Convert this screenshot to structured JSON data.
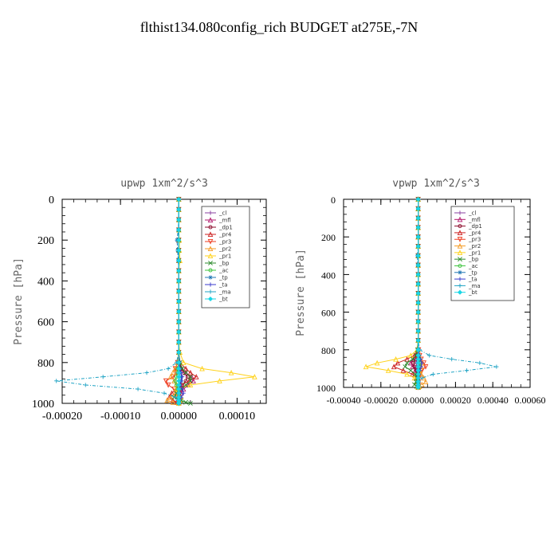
{
  "figure": {
    "title": "flthist134.080config_rich  BUDGET at275E,-7N"
  },
  "legend_labels": [
    "_cl",
    "_mfl",
    "_dp1",
    "_pr4",
    "_pr3",
    "_pr2",
    "_pr1",
    "_bp",
    "_ac",
    "_tp",
    "_ta",
    "_ma",
    "_bt"
  ],
  "colors": {
    "_cl": "#8a3fa0",
    "_mfl": "#b2186b",
    "_dp1": "#8b0a2a",
    "_pr4": "#cc1f1f",
    "_pr3": "#ee3b1f",
    "_pr2": "#f59a23",
    "_pr1": "#ffd21a",
    "_bp": "#2e8b2e",
    "_ac": "#3cc43c",
    "_tp": "#1f77b4",
    "_ta": "#3a3acc",
    "_ma": "#1fa3c4",
    "_bt": "#18d6e6"
  },
  "chart_data": [
    {
      "type": "line",
      "title": "upwp  1xm^2/s^3",
      "xlabel": "",
      "ylabel": "Pressure [hPa]",
      "xlim": [
        -0.0002,
        0.00015
      ],
      "ylim": [
        1000,
        0
      ],
      "x_ticks": [
        -0.0002,
        -0.0001,
        0.0,
        0.0001
      ],
      "x_tick_labels": [
        "-0.00020",
        "-0.00010",
        "0.00000",
        "0.00010"
      ],
      "y_ticks": [
        0,
        200,
        400,
        600,
        800,
        1000
      ],
      "y_tick_labels": [
        "0",
        "200",
        "400",
        "600",
        "800",
        "1000"
      ],
      "legend_position": "upper-right",
      "pressure_levels": [
        0,
        50,
        100,
        150,
        200,
        250,
        300,
        350,
        400,
        450,
        500,
        550,
        600,
        650,
        700,
        750,
        800,
        830,
        850,
        870,
        890,
        910,
        930,
        950,
        970,
        985,
        995,
        1000
      ],
      "series": [
        {
          "name": "_cl",
          "x": [
            0,
            0,
            0,
            0,
            0,
            0,
            0,
            0,
            0,
            0,
            0,
            0,
            0,
            0,
            0,
            0,
            0,
            2e-06,
            4e-06,
            5e-06,
            4e-06,
            2e-06,
            1e-06,
            0,
            -1e-06,
            0,
            0,
            0
          ]
        },
        {
          "name": "_mfl",
          "x": [
            0,
            0,
            0,
            0,
            0,
            0,
            0,
            0,
            0,
            0,
            0,
            0,
            0,
            0,
            0,
            0,
            1e-06,
            5e-06,
            1.2e-05,
            2.2e-05,
            2.5e-05,
            1.6e-05,
            8e-06,
            4e-06,
            2e-06,
            1e-06,
            0,
            0
          ]
        },
        {
          "name": "_dp1",
          "x": [
            0,
            0,
            0,
            0,
            0,
            0,
            0,
            0,
            0,
            0,
            0,
            0,
            0,
            0,
            0,
            0,
            1e-06,
            4e-06,
            9e-06,
            1.5e-05,
            1.2e-05,
            6e-06,
            3e-06,
            1e-06,
            0,
            0,
            0,
            0
          ]
        },
        {
          "name": "_pr4",
          "x": [
            0,
            0,
            0,
            0,
            0,
            0,
            0,
            0,
            0,
            0,
            0,
            0,
            0,
            0,
            0,
            0,
            2e-06,
            1.2e-05,
            2e-05,
            3e-05,
            1.8e-05,
            4e-06,
            -4e-06,
            -1.2e-05,
            -1.6e-05,
            -1e-05,
            -4e-06,
            0
          ]
        },
        {
          "name": "_pr3",
          "x": [
            0,
            0,
            0,
            0,
            0,
            0,
            0,
            0,
            0,
            0,
            0,
            0,
            0,
            0,
            0,
            0,
            -2e-06,
            -6e-06,
            -4e-06,
            -1e-05,
            -2.2e-05,
            -1.8e-05,
            -8e-06,
            -4e-06,
            -2e-06,
            0,
            0,
            0
          ]
        },
        {
          "name": "_pr2",
          "x": [
            0,
            0,
            0,
            0,
            0,
            0,
            0,
            0,
            0,
            0,
            0,
            0,
            0,
            0,
            0,
            0,
            -2e-06,
            -6e-06,
            -1e-05,
            -1.4e-05,
            -8e-06,
            -4e-06,
            -2e-06,
            -6e-06,
            -1.4e-05,
            -2e-05,
            -1e-05,
            0
          ]
        },
        {
          "name": "_pr1",
          "x": [
            0,
            0,
            0,
            0,
            1e-06,
            1e-06,
            2e-06,
            0,
            0,
            0,
            0,
            0,
            0,
            0,
            0,
            2e-06,
            8e-06,
            4e-05,
            9e-05,
            0.00013,
            7e-05,
            2e-05,
            -4e-06,
            -2e-06,
            4e-06,
            2e-06,
            0,
            0
          ]
        },
        {
          "name": "_bp",
          "x": [
            0,
            0,
            0,
            0,
            0,
            0,
            0,
            0,
            0,
            0,
            0,
            0,
            0,
            0,
            0,
            0,
            2e-06,
            6e-06,
            1.2e-05,
            2e-05,
            2e-05,
            1.2e-05,
            4e-06,
            -4e-06,
            -8e-06,
            4e-06,
            1.2e-05,
            2e-05
          ]
        },
        {
          "name": "_ac",
          "x": [
            0,
            0,
            0,
            0,
            0,
            0,
            0,
            0,
            0,
            0,
            0,
            0,
            0,
            0,
            0,
            0,
            0,
            -2e-06,
            -2e-06,
            -4e-06,
            -6e-06,
            -4e-06,
            -2e-06,
            0,
            0,
            0,
            0,
            0
          ]
        },
        {
          "name": "_tp",
          "x": [
            0,
            0,
            0,
            -1e-06,
            -3e-06,
            -2e-06,
            -1e-06,
            0,
            0,
            0,
            0,
            0,
            0,
            0,
            0,
            0,
            0,
            0,
            2e-06,
            4e-06,
            4e-06,
            2e-06,
            0,
            0,
            0,
            0,
            0,
            0
          ]
        },
        {
          "name": "_ta",
          "x": [
            0,
            0,
            0,
            0,
            0,
            0,
            0,
            0,
            0,
            0,
            0,
            0,
            0,
            0,
            0,
            0,
            1e-06,
            2e-06,
            4e-06,
            6e-06,
            4e-06,
            2e-06,
            6e-06,
            8e-06,
            4e-06,
            0,
            0,
            0
          ]
        },
        {
          "name": "_ma",
          "x": [
            0,
            0,
            0,
            0,
            0,
            0,
            0,
            0,
            0,
            0,
            0,
            0,
            0,
            0,
            0,
            0,
            -4e-06,
            -1.8e-05,
            -5.5e-05,
            -0.00013,
            -0.00021,
            -0.00016,
            -7e-05,
            -2.5e-05,
            -6e-06,
            -2e-06,
            0,
            0
          ]
        },
        {
          "name": "_bt",
          "x": [
            0,
            0,
            0,
            0,
            0,
            0,
            0,
            0,
            0,
            0,
            0,
            0,
            0,
            0,
            0,
            0,
            0,
            0,
            0,
            0,
            0,
            0,
            0,
            0,
            0,
            0,
            0,
            0
          ]
        }
      ]
    },
    {
      "type": "line",
      "title": "vpwp  1xm^2/s^3",
      "xlabel": "",
      "ylabel": "Pressure [hPa]",
      "xlim": [
        -0.0004,
        0.0006
      ],
      "ylim": [
        1000,
        0
      ],
      "x_ticks": [
        -0.0004,
        -0.0002,
        0.0,
        0.0002,
        0.0004,
        0.0006
      ],
      "x_tick_labels": [
        "-0.00040",
        "-0.00020",
        "0.00000",
        "0.00020",
        "0.00040",
        "0.00060"
      ],
      "y_ticks": [
        0,
        200,
        400,
        600,
        800,
        1000
      ],
      "y_tick_labels": [
        "0",
        "200",
        "400",
        "600",
        "800",
        "1000"
      ],
      "legend_position": "upper-right",
      "pressure_levels": [
        0,
        50,
        100,
        150,
        200,
        250,
        300,
        350,
        400,
        450,
        500,
        550,
        600,
        650,
        700,
        750,
        800,
        830,
        850,
        870,
        890,
        910,
        930,
        950,
        970,
        985,
        995,
        1000
      ],
      "series": [
        {
          "name": "_cl",
          "x": [
            0,
            0,
            0,
            0,
            0,
            0,
            0,
            0,
            0,
            0,
            0,
            0,
            0,
            0,
            0,
            0,
            0,
            -4e-06,
            -8e-06,
            -1e-05,
            -8e-06,
            -4e-06,
            -2e-06,
            0,
            0,
            0,
            0,
            0
          ]
        },
        {
          "name": "_mfl",
          "x": [
            0,
            0,
            0,
            0,
            0,
            0,
            0,
            0,
            0,
            0,
            0,
            0,
            0,
            0,
            0,
            0,
            -2e-06,
            -1e-05,
            -2.5e-05,
            -4e-05,
            -3e-05,
            -1.5e-05,
            -6e-06,
            -2e-06,
            0,
            0,
            0,
            0
          ]
        },
        {
          "name": "_dp1",
          "x": [
            0,
            0,
            0,
            0,
            0,
            0,
            0,
            0,
            0,
            0,
            0,
            0,
            0,
            0,
            0,
            0,
            -2e-06,
            -8e-06,
            -1.6e-05,
            -2.5e-05,
            -2e-05,
            -1e-05,
            -4e-06,
            -1e-06,
            0,
            0,
            0,
            0
          ]
        },
        {
          "name": "_pr4",
          "x": [
            0,
            0,
            0,
            0,
            0,
            0,
            0,
            0,
            0,
            0,
            0,
            0,
            0,
            0,
            0,
            0,
            -4e-06,
            -2e-05,
            -6e-05,
            -0.00011,
            -0.00013,
            -8e-05,
            -3e-05,
            -1e-05,
            -4e-06,
            0,
            0,
            0
          ]
        },
        {
          "name": "_pr3",
          "x": [
            0,
            0,
            0,
            0,
            0,
            0,
            0,
            0,
            0,
            0,
            0,
            0,
            0,
            0,
            0,
            0,
            2e-06,
            8e-06,
            1.6e-05,
            3e-05,
            4e-05,
            2e-05,
            1e-05,
            4e-06,
            2e-06,
            0,
            0,
            0
          ]
        },
        {
          "name": "_pr2",
          "x": [
            0,
            0,
            0,
            0,
            0,
            0,
            0,
            0,
            0,
            0,
            0,
            0,
            0,
            0,
            0,
            0,
            0,
            4e-06,
            1e-05,
            2e-05,
            1.6e-05,
            1e-05,
            1.6e-05,
            3e-05,
            4e-05,
            2e-05,
            6e-06,
            0
          ]
        },
        {
          "name": "_pr1",
          "x": [
            0,
            0,
            0,
            0,
            0,
            0,
            0,
            0,
            0,
            0,
            0,
            0,
            0,
            0,
            0,
            0,
            -6e-06,
            -4e-05,
            -0.00012,
            -0.00022,
            -0.00028,
            -0.00016,
            -6e-05,
            -2e-05,
            -6e-06,
            0,
            0,
            0
          ]
        },
        {
          "name": "_bp",
          "x": [
            0,
            0,
            0,
            0,
            0,
            0,
            0,
            0,
            0,
            0,
            0,
            0,
            0,
            0,
            0,
            0,
            -4e-06,
            -1.2e-05,
            -3e-05,
            -6e-05,
            -7e-05,
            -4e-05,
            -1.6e-05,
            -6e-06,
            -1.2e-05,
            -2e-05,
            -8e-06,
            0
          ]
        },
        {
          "name": "_ac",
          "x": [
            0,
            0,
            0,
            0,
            0,
            0,
            0,
            0,
            0,
            0,
            0,
            0,
            0,
            0,
            0,
            0,
            0,
            4e-06,
            8e-06,
            1e-05,
            8e-06,
            4e-06,
            2e-06,
            0,
            0,
            0,
            0,
            0
          ]
        },
        {
          "name": "_tp",
          "x": [
            0,
            0,
            0,
            0,
            0,
            0,
            -4e-06,
            -2e-06,
            0,
            0,
            0,
            0,
            0,
            0,
            0,
            0,
            0,
            0,
            0,
            0,
            0,
            0,
            0,
            0,
            0,
            0,
            0,
            0
          ]
        },
        {
          "name": "_ta",
          "x": [
            0,
            0,
            0,
            0,
            0,
            0,
            0,
            0,
            0,
            0,
            0,
            0,
            0,
            0,
            0,
            0,
            2e-06,
            6e-06,
            1.2e-05,
            2e-05,
            1.6e-05,
            8e-06,
            4e-06,
            2e-06,
            0,
            0,
            0,
            0
          ]
        },
        {
          "name": "_ma",
          "x": [
            0,
            0,
            0,
            0,
            0,
            0,
            0,
            0,
            0,
            0,
            0,
            0,
            0,
            0,
            0,
            0,
            8e-06,
            6e-05,
            0.00018,
            0.00033,
            0.00042,
            0.00026,
            8e-05,
            2e-05,
            4e-06,
            0,
            0,
            0
          ]
        },
        {
          "name": "_bt",
          "x": [
            0,
            0,
            0,
            0,
            0,
            0,
            0,
            0,
            0,
            0,
            0,
            0,
            0,
            0,
            0,
            0,
            0,
            0,
            0,
            0,
            0,
            0,
            0,
            0,
            0,
            0,
            0,
            0
          ]
        }
      ]
    }
  ]
}
